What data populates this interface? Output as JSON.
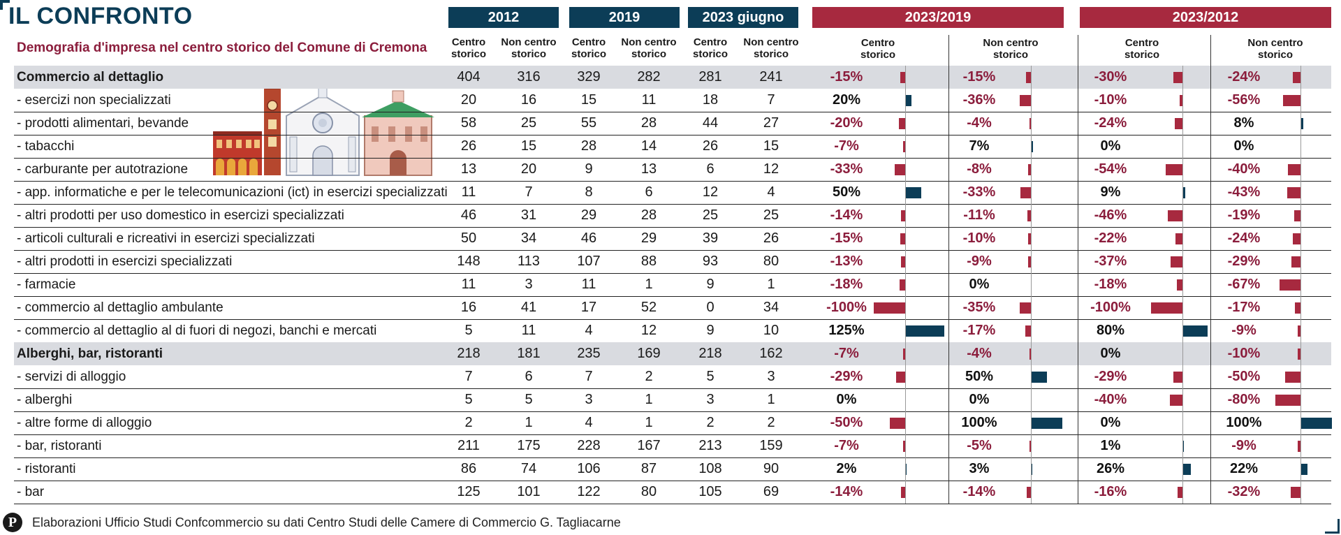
{
  "header": {
    "title": "IL CONFRONTO",
    "subtitle": "Demografia d'impresa nel centro storico del Comune di Cremona",
    "years": [
      "2012",
      "2019",
      "2023 giugno",
      "2023/2019",
      "2023/2012"
    ],
    "sub_labels": {
      "centro_line1": "Centro",
      "centro_line2": "storico",
      "non_line1": "Non centro",
      "non_line2": "storico"
    }
  },
  "footer": {
    "logo_text": "P",
    "source": "Elaborazioni Ufficio Studi Confcommercio su dati Centro Studi delle Camere di Commercio G. Tagliacarne"
  },
  "colors": {
    "navy": "#0c3d57",
    "crimson": "#a7293f",
    "category_bg": "#d9dbe0"
  },
  "chart_data": {
    "type": "table",
    "title": "IL CONFRONTO",
    "subtitle": "Demografia d'impresa nel centro storico del Comune di Cremona",
    "columns": [
      "2012 Centro storico",
      "2012 Non centro storico",
      "2019 Centro storico",
      "2019 Non centro storico",
      "2023 giugno Centro storico",
      "2023 giugno Non centro storico",
      "2023/2019 Centro storico",
      "2023/2019 Non centro storico",
      "2023/2012 Centro storico",
      "2023/2012 Non centro storico"
    ],
    "rows": [
      {
        "label": "Commercio al dettaglio",
        "category": true,
        "values": [
          404,
          316,
          329,
          282,
          281,
          241
        ],
        "pct": [
          "-15%",
          "-15%",
          "-30%",
          "-24%"
        ],
        "pct_values": [
          -15,
          -15,
          -30,
          -24
        ]
      },
      {
        "label": "- esercizi non specializzati",
        "category": false,
        "values": [
          20,
          16,
          15,
          11,
          18,
          7
        ],
        "pct": [
          "20%",
          "-36%",
          "-10%",
          "-56%"
        ],
        "pct_values": [
          20,
          -36,
          -10,
          -56
        ]
      },
      {
        "label": "- prodotti alimentari, bevande",
        "category": false,
        "values": [
          58,
          25,
          55,
          28,
          44,
          27
        ],
        "pct": [
          "-20%",
          "-4%",
          "-24%",
          "8%"
        ],
        "pct_values": [
          -20,
          -4,
          -24,
          8
        ]
      },
      {
        "label": "- tabacchi",
        "category": false,
        "values": [
          26,
          15,
          28,
          14,
          26,
          15
        ],
        "pct": [
          "-7%",
          "7%",
          "0%",
          "0%"
        ],
        "pct_values": [
          -7,
          7,
          0,
          0
        ]
      },
      {
        "label": "- carburante per autotrazione",
        "category": false,
        "values": [
          13,
          20,
          9,
          13,
          6,
          12
        ],
        "pct": [
          "-33%",
          "-8%",
          "-54%",
          "-40%"
        ],
        "pct_values": [
          -33,
          -8,
          -54,
          -40
        ]
      },
      {
        "label": "- app. informatiche e per le telecomunicazioni (ict) in esercizi specializzati",
        "category": false,
        "values": [
          11,
          7,
          8,
          6,
          12,
          4
        ],
        "pct": [
          "50%",
          "-33%",
          "9%",
          "-43%"
        ],
        "pct_values": [
          50,
          -33,
          9,
          -43
        ]
      },
      {
        "label": "- altri prodotti per uso domestico in esercizi specializzati",
        "category": false,
        "values": [
          46,
          31,
          29,
          28,
          25,
          25
        ],
        "pct": [
          "-14%",
          "-11%",
          "-46%",
          "-19%"
        ],
        "pct_values": [
          -14,
          -11,
          -46,
          -19
        ]
      },
      {
        "label": "- articoli culturali e ricreativi in esercizi specializzati",
        "category": false,
        "values": [
          50,
          34,
          46,
          29,
          39,
          26
        ],
        "pct": [
          "-15%",
          "-10%",
          "-22%",
          "-24%"
        ],
        "pct_values": [
          -15,
          -10,
          -22,
          -24
        ]
      },
      {
        "label": "- altri prodotti in esercizi specializzati",
        "category": false,
        "values": [
          148,
          113,
          107,
          88,
          93,
          80
        ],
        "pct": [
          "-13%",
          "-9%",
          "-37%",
          "-29%"
        ],
        "pct_values": [
          -13,
          -9,
          -37,
          -29
        ]
      },
      {
        "label": "- farmacie",
        "category": false,
        "values": [
          11,
          3,
          11,
          1,
          9,
          1
        ],
        "pct": [
          "-18%",
          "0%",
          "-18%",
          "-67%"
        ],
        "pct_values": [
          -18,
          0,
          -18,
          -67
        ]
      },
      {
        "label": "- commercio al dettaglio ambulante",
        "category": false,
        "values": [
          16,
          41,
          17,
          52,
          0,
          34
        ],
        "pct": [
          "-100%",
          "-35%",
          "-100%",
          "-17%"
        ],
        "pct_values": [
          -100,
          -35,
          -100,
          -17
        ]
      },
      {
        "label": "- commercio al dettaglio al di fuori di negozi, banchi e mercati",
        "category": false,
        "values": [
          5,
          11,
          4,
          12,
          9,
          10
        ],
        "pct": [
          "125%",
          "-17%",
          "80%",
          "-9%"
        ],
        "pct_values": [
          125,
          -17,
          80,
          -9
        ]
      },
      {
        "label": "Alberghi, bar, ristoranti",
        "category": true,
        "values": [
          218,
          181,
          235,
          169,
          218,
          162
        ],
        "pct": [
          "-7%",
          "-4%",
          "0%",
          "-10%"
        ],
        "pct_values": [
          -7,
          -4,
          0,
          -10
        ]
      },
      {
        "label": "- servizi di alloggio",
        "category": false,
        "values": [
          7,
          6,
          7,
          2,
          5,
          3
        ],
        "pct": [
          "-29%",
          "50%",
          "-29%",
          "-50%"
        ],
        "pct_values": [
          -29,
          50,
          -29,
          -50
        ]
      },
      {
        "label": "- alberghi",
        "category": false,
        "values": [
          5,
          5,
          3,
          1,
          3,
          1
        ],
        "pct": [
          "0%",
          "0%",
          "-40%",
          "-80%"
        ],
        "pct_values": [
          0,
          0,
          -40,
          -80
        ]
      },
      {
        "label": "- altre forme di alloggio",
        "category": false,
        "values": [
          2,
          1,
          4,
          1,
          2,
          2
        ],
        "pct": [
          "-50%",
          "100%",
          "0%",
          "100%"
        ],
        "pct_values": [
          -50,
          100,
          0,
          100
        ]
      },
      {
        "label": "- bar, ristoranti",
        "category": false,
        "values": [
          211,
          175,
          228,
          167,
          213,
          159
        ],
        "pct": [
          "-7%",
          "-5%",
          "1%",
          "-9%"
        ],
        "pct_values": [
          -7,
          -5,
          1,
          -9
        ]
      },
      {
        "label": "- ristoranti",
        "category": false,
        "values": [
          86,
          74,
          106,
          87,
          108,
          90
        ],
        "pct": [
          "2%",
          "3%",
          "26%",
          "22%"
        ],
        "pct_values": [
          2,
          3,
          26,
          22
        ]
      },
      {
        "label": "- bar",
        "category": false,
        "values": [
          125,
          101,
          122,
          80,
          105,
          69
        ],
        "pct": [
          "-14%",
          "-14%",
          "-16%",
          "-32%"
        ],
        "pct_values": [
          -14,
          -14,
          -16,
          -32
        ]
      }
    ]
  }
}
